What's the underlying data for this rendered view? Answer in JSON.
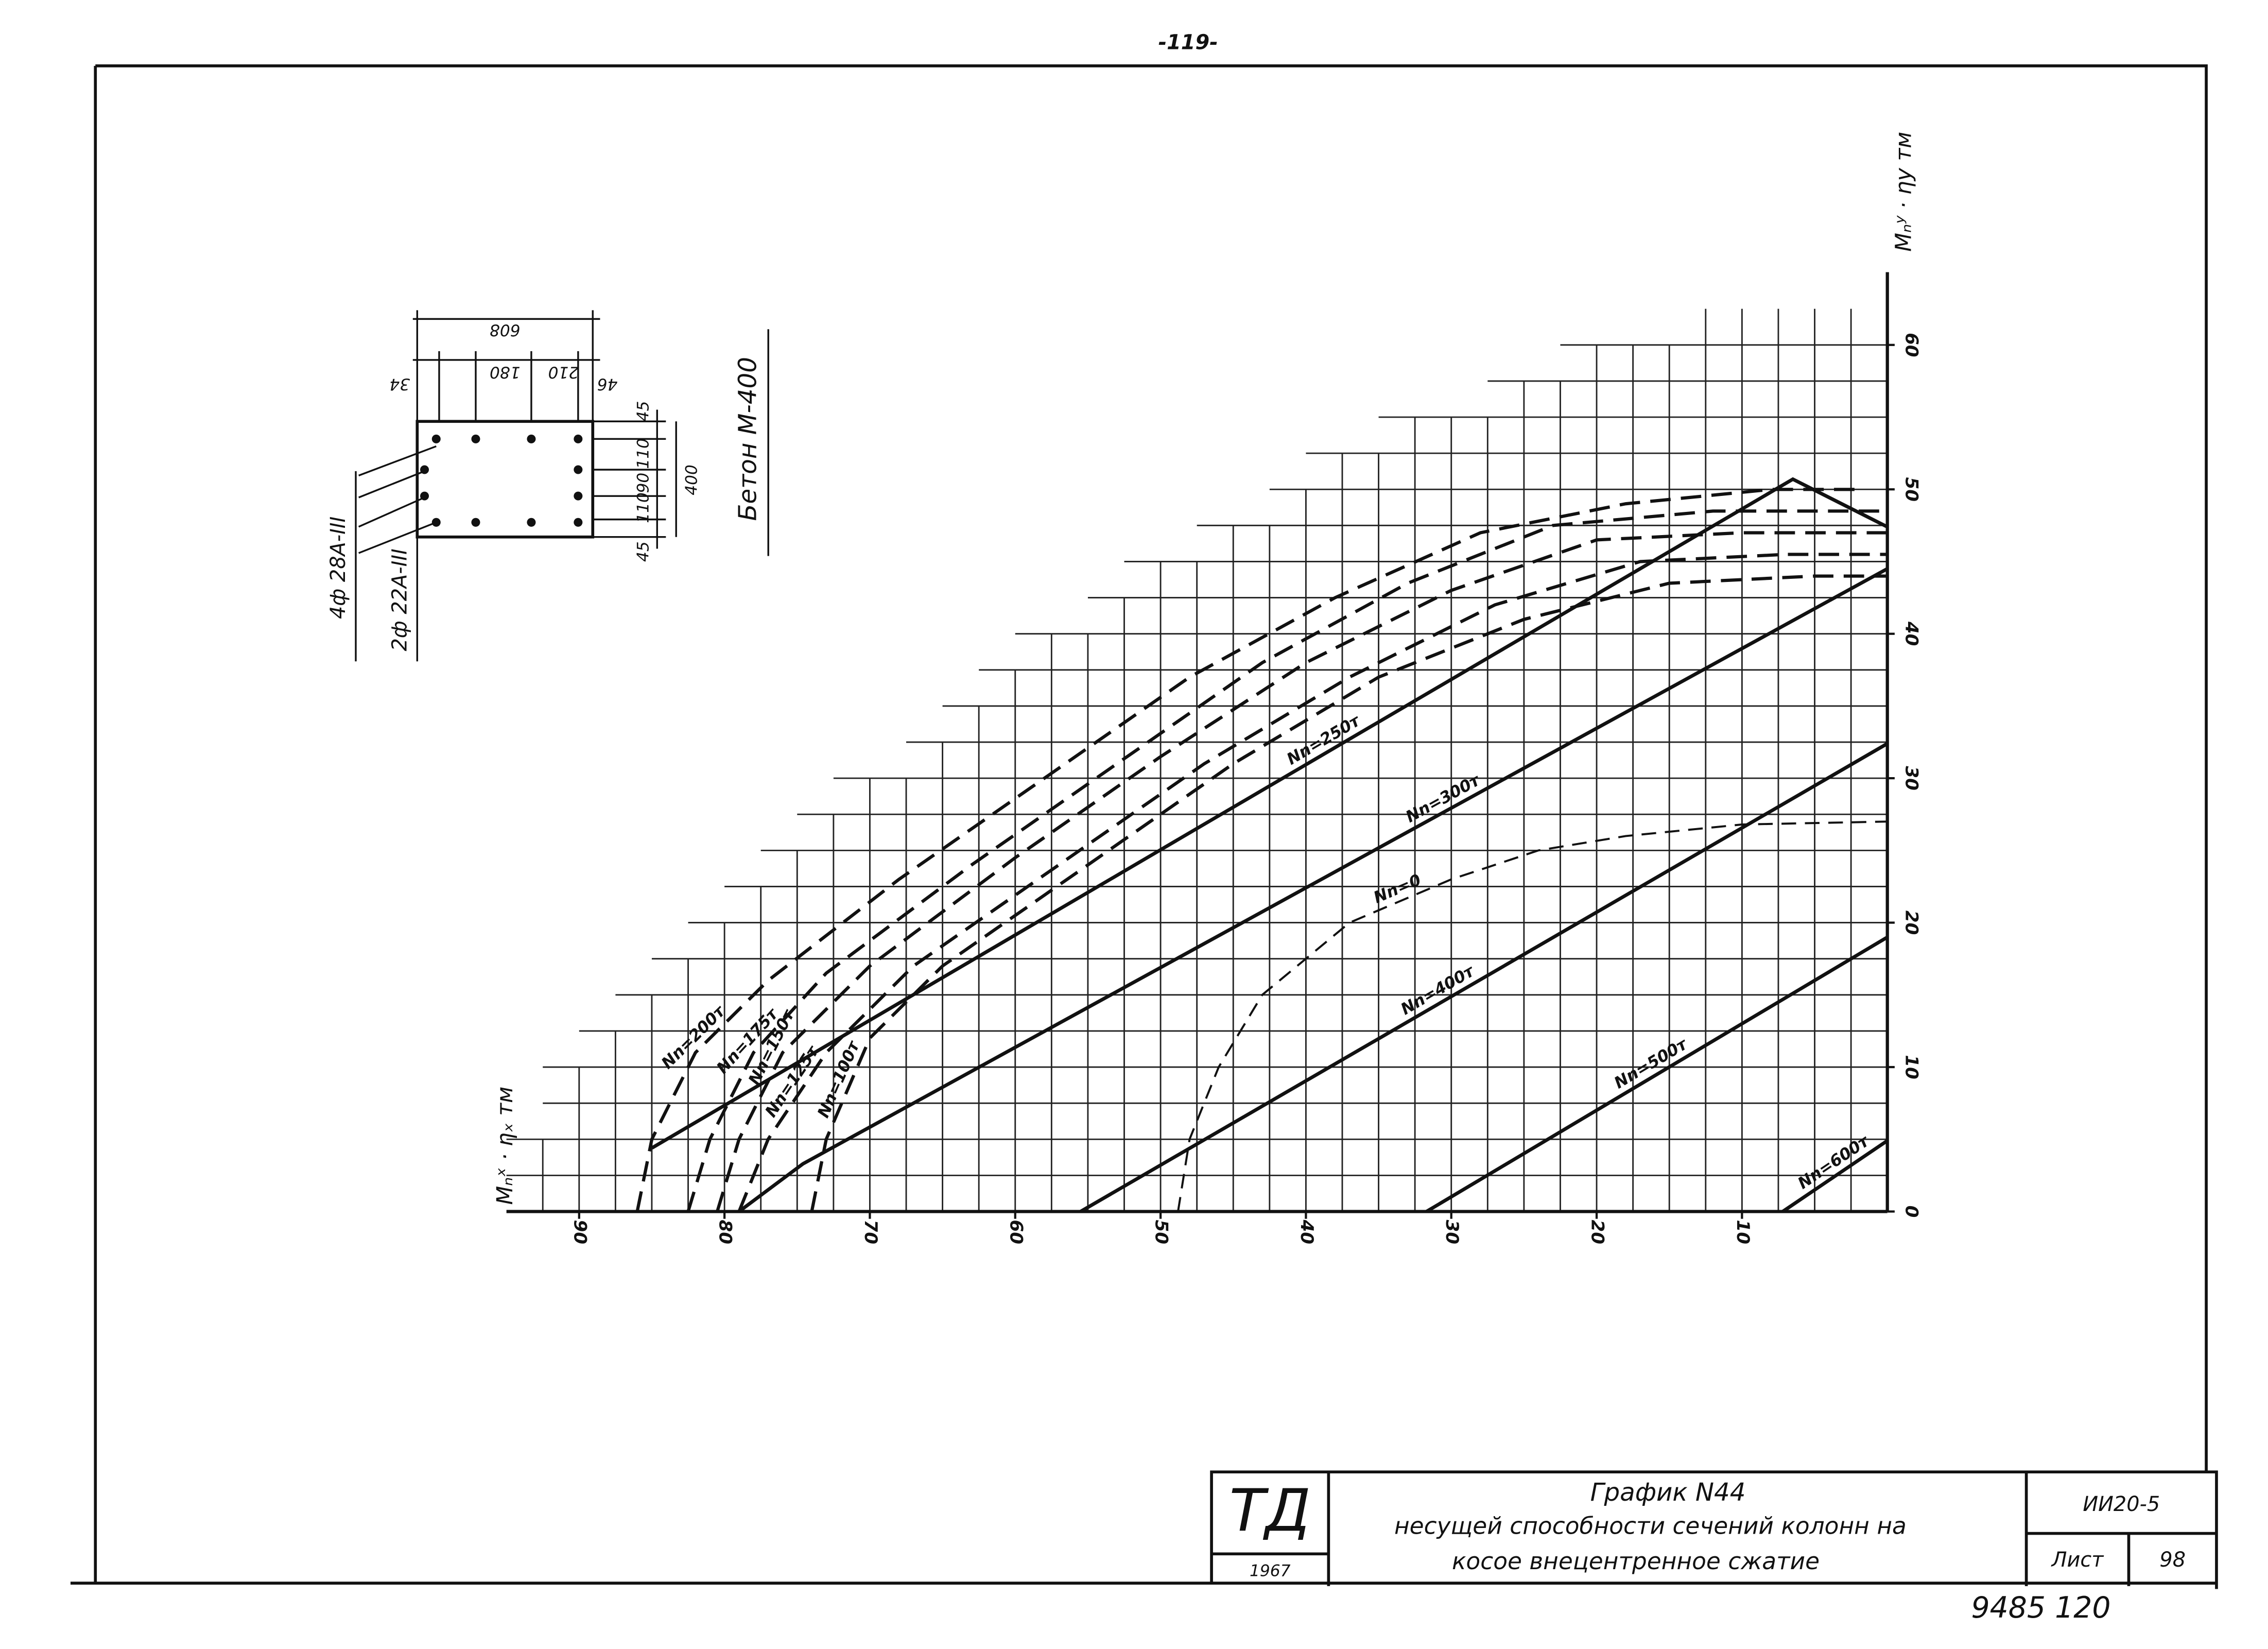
{
  "page_number": "-119-",
  "section": {
    "concrete": "Бетон М-400",
    "bars": [
      "4ф 28А-III",
      "2ф 22А-III"
    ],
    "dims_top": [
      "608",
      "180",
      "210",
      "34",
      "46"
    ],
    "dims_side": [
      "45",
      "110",
      "90",
      "110",
      "45",
      "400"
    ]
  },
  "chart_data": {
    "type": "line",
    "x_label": "Mₙˣ · ηₓ тм",
    "y_label": "Mₙʸ · ηy тм",
    "xlim": [
      95,
      0
    ],
    "ylim": [
      0,
      62
    ],
    "xticks": [
      90,
      80,
      70,
      60,
      50,
      40,
      30,
      20,
      10
    ],
    "yticks": [
      0,
      10,
      20,
      30,
      40,
      50,
      60
    ],
    "grid": true,
    "color": "#111111",
    "series": [
      {
        "name": "Nn=600т",
        "style": "solid",
        "x": [
          7.2,
          0
        ],
        "y": [
          0,
          4.9
        ]
      },
      {
        "name": "Nn=500т",
        "style": "solid",
        "x": [
          31.7,
          0
        ],
        "y": [
          0,
          19
        ]
      },
      {
        "name": "Nn=400т",
        "style": "solid",
        "x": [
          55.5,
          0
        ],
        "y": [
          0,
          32.4
        ]
      },
      {
        "name": "Nn=300т",
        "style": "solid",
        "x": [
          79,
          74.6,
          0
        ],
        "y": [
          0,
          3.3,
          44.5
        ]
      },
      {
        "name": "Nn=250т",
        "style": "solid",
        "x": [
          85,
          6.5,
          0
        ],
        "y": [
          4.4,
          50.7,
          47.4
        ]
      },
      {
        "name": "Nn=0",
        "style": "dashed-thin",
        "x": [
          48.8,
          48,
          46,
          43,
          37,
          30,
          24,
          18,
          10,
          0
        ],
        "y": [
          0,
          5,
          10,
          15,
          20,
          23,
          25,
          26,
          26.8,
          27
        ]
      },
      {
        "name": "Nn=100т",
        "style": "dashed",
        "x": [
          74,
          73,
          70,
          65,
          55,
          45,
          35,
          25,
          15,
          5,
          0
        ],
        "y": [
          0,
          5,
          12,
          17,
          24,
          31,
          37,
          41,
          43.5,
          44,
          44
        ]
      },
      {
        "name": "Nn=125т",
        "style": "dashed",
        "x": [
          79,
          77,
          73,
          67,
          57,
          47,
          37,
          27,
          17,
          7,
          0
        ],
        "y": [
          0,
          5,
          11,
          17,
          24,
          31,
          37,
          42,
          45,
          45.5,
          45.5
        ]
      },
      {
        "name": "Nn=150т",
        "style": "dashed",
        "x": [
          80.5,
          79,
          76,
          70,
          60,
          50,
          40,
          30,
          20,
          10,
          0
        ],
        "y": [
          0,
          5,
          11,
          17,
          24.5,
          31.5,
          38,
          43,
          46.5,
          47,
          47
        ]
      },
      {
        "name": "Nn=175т",
        "style": "dashed",
        "x": [
          82.5,
          81,
          78,
          73,
          63,
          53,
          43,
          33,
          23,
          12,
          0
        ],
        "y": [
          0,
          5,
          11,
          16.5,
          24,
          31,
          38,
          43.5,
          47.5,
          48.5,
          48.5
        ]
      },
      {
        "name": "Nn=200т",
        "style": "dashed",
        "x": [
          86,
          85,
          82,
          77,
          68,
          58,
          48,
          38,
          28,
          18,
          8,
          2
        ],
        "y": [
          0,
          5,
          11,
          16,
          23,
          30,
          37,
          42.5,
          47,
          49,
          50,
          50
        ]
      }
    ]
  },
  "title_block": {
    "logo": "ТД",
    "year": "1967",
    "title": "График N44",
    "description": [
      "несущей способности   сечений колонн на",
      "косое   внецентренное   сжатие"
    ],
    "code": "ИИ20-5",
    "sheet_label": "Лист",
    "sheet": "98"
  },
  "stamp": "9485  120"
}
